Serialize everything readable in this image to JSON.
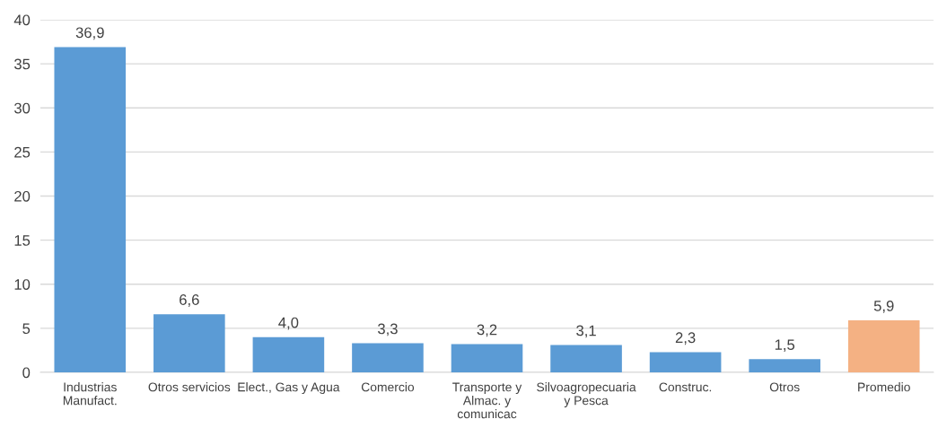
{
  "chart_data": {
    "type": "bar",
    "categories": [
      "Industrias\nManufact.",
      "Otros servicios",
      "Elect., Gas y Agua",
      "Comercio",
      "Transporte y\nAlmac. y\ncomunicac",
      "Silvoagropecuaria\ny Pesca",
      "Construc.",
      "Otros",
      "Promedio"
    ],
    "values": [
      36.9,
      6.6,
      4.0,
      3.3,
      3.2,
      3.1,
      2.3,
      1.5,
      5.9
    ],
    "colors": [
      "#5b9bd5",
      "#5b9bd5",
      "#5b9bd5",
      "#5b9bd5",
      "#5b9bd5",
      "#5b9bd5",
      "#5b9bd5",
      "#5b9bd5",
      "#f4b183"
    ],
    "value_labels": [
      "36,9",
      "6,6",
      "4,0",
      "3,3",
      "3,2",
      "3,1",
      "2,3",
      "1,5",
      "5,9"
    ],
    "ylim": [
      0,
      40
    ],
    "yticks": [
      0,
      5,
      10,
      15,
      20,
      25,
      30,
      35,
      40
    ],
    "grid": "y"
  }
}
